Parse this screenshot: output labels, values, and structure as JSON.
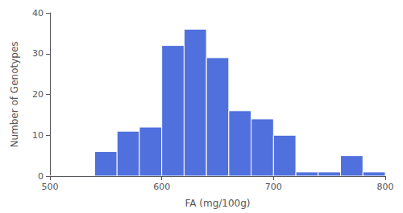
{
  "chart_data": {
    "type": "histogram",
    "bins": [
      500,
      520,
      540,
      560,
      580,
      600,
      620,
      640,
      660,
      680,
      700,
      720,
      740,
      760,
      780,
      800
    ],
    "values": [
      0,
      0,
      6,
      11,
      12,
      32,
      36,
      29,
      16,
      14,
      10,
      1,
      1,
      5,
      1
    ],
    "xlabel": "FA (mg/100g)",
    "ylabel": "Number of Genotypes",
    "xlim": [
      500,
      800
    ],
    "ylim": [
      0,
      40
    ],
    "xticks": [
      500,
      600,
      700,
      800
    ],
    "yticks": [
      0,
      10,
      20,
      30,
      40
    ],
    "grid": false
  }
}
